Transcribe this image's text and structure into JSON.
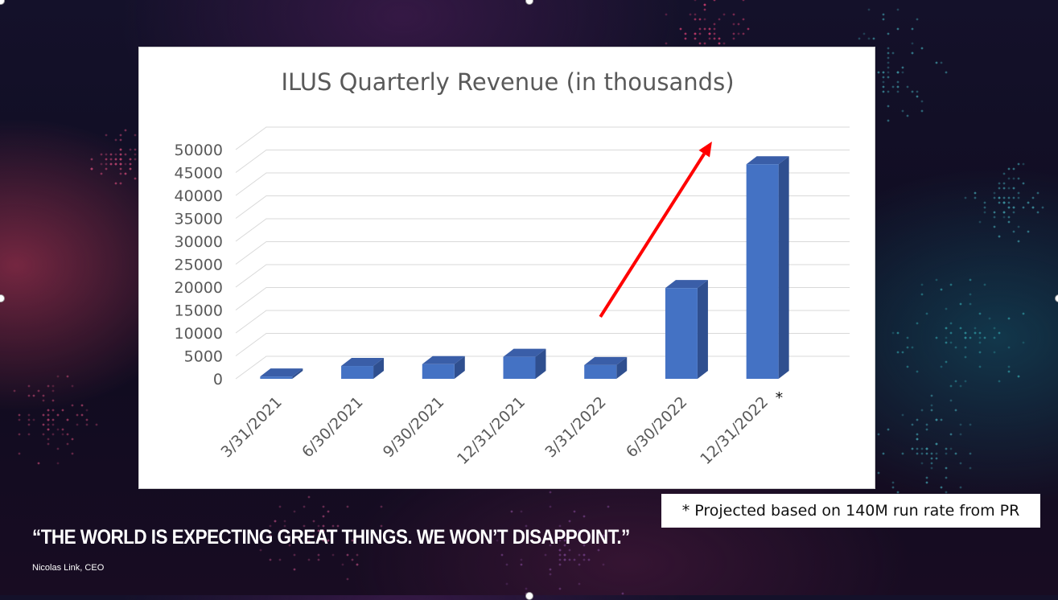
{
  "slide": {
    "quote": "“THE WORLD IS EXPECTING GREAT THINGS. WE WON’T DISAPPOINT.”",
    "attribution": "Nicolas Link, CEO",
    "footnote": "* Projected based on 140M run rate from PR",
    "colors": {
      "bar_front": "#4472c4",
      "bar_top": "#3a5ea8",
      "bar_side": "#2f4f8f",
      "arrow": "#ff0000",
      "grid": "#d9d9d9",
      "text": "#595959"
    }
  },
  "chart_data": {
    "type": "bar",
    "title": "ILUS Quarterly Revenue (in thousands)",
    "categories": [
      "3/31/2021",
      "6/30/2021",
      "9/30/2021",
      "12/31/2021",
      "3/31/2022",
      "6/30/2022",
      "12/31/2022"
    ],
    "category_markers": [
      "",
      "",
      "",
      "",
      "",
      "",
      "*"
    ],
    "series": [
      {
        "values": [
          500,
          2800,
          3200,
          4800,
          3000,
          19800,
          46800
        ]
      }
    ],
    "yticks": [
      0,
      5000,
      10000,
      15000,
      20000,
      25000,
      30000,
      35000,
      40000,
      45000,
      50000
    ],
    "ylim": [
      0,
      50000
    ],
    "grid": true,
    "legend": "none",
    "annotations": [
      {
        "type": "arrow",
        "from_category": "3/31/2022",
        "to_category": "12/31/2022",
        "meaning": "upward trend"
      }
    ]
  }
}
